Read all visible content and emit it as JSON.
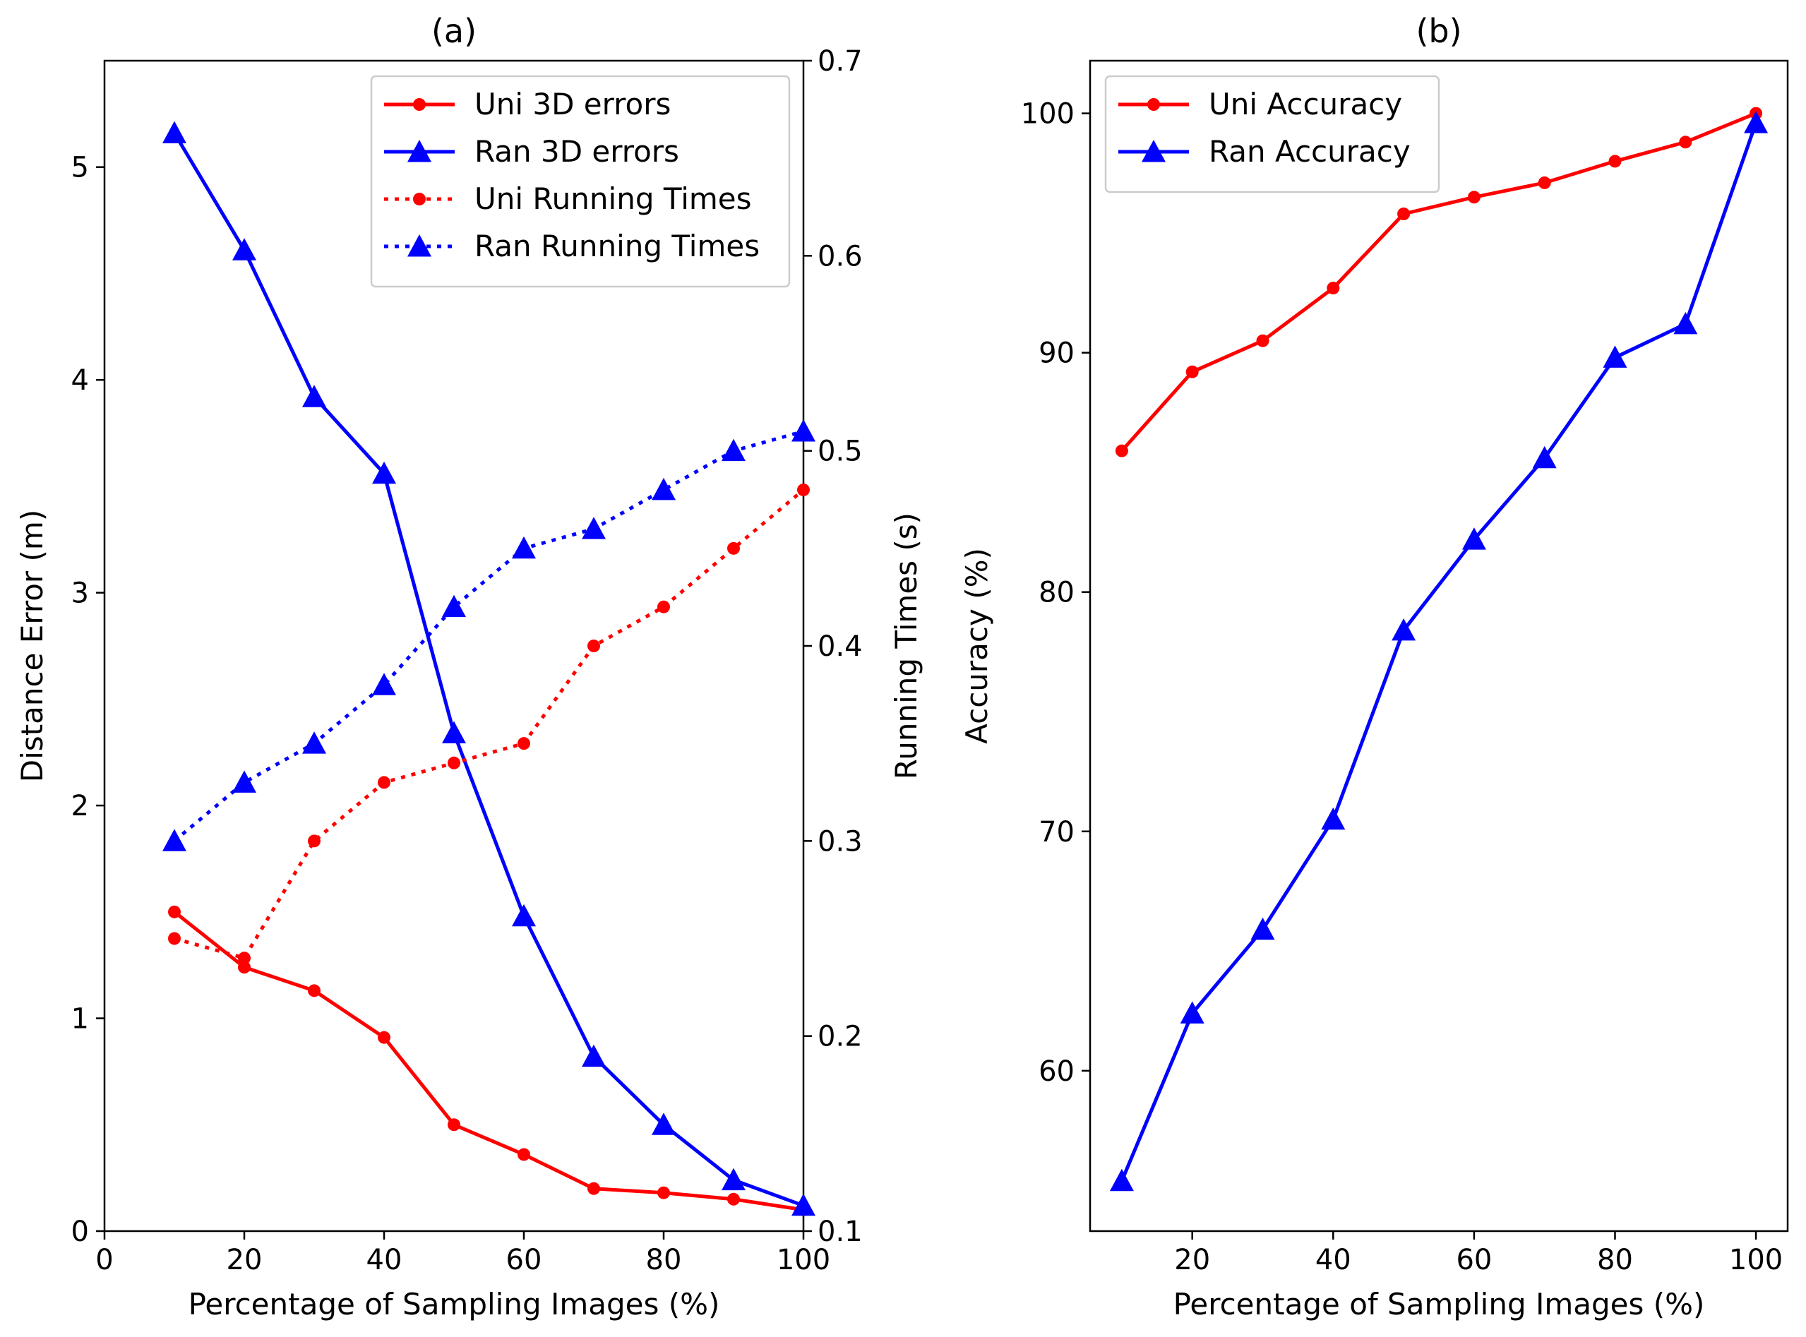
{
  "chart_data": [
    {
      "type": "line",
      "title": "(a)",
      "xlabel": "Percentage of Sampling Images (%)",
      "ylabel": "Distance Error (m)",
      "y2label": "Running Times (s)",
      "xlim": [
        0,
        100
      ],
      "ylim": [
        0,
        5.5
      ],
      "y2lim": [
        0.1,
        0.7
      ],
      "xticks": [
        0,
        20,
        40,
        60,
        80,
        100
      ],
      "yticks": [
        0,
        1,
        2,
        3,
        4,
        5
      ],
      "y2ticks": [
        0.1,
        0.2,
        0.3,
        0.4,
        0.5,
        0.6,
        0.7
      ],
      "legend_position": "top-right",
      "x": [
        10,
        20,
        30,
        40,
        50,
        60,
        70,
        80,
        90,
        100
      ],
      "series": [
        {
          "name": "Uni 3D errors",
          "axis": "left",
          "color": "#ff0000",
          "style": "solid",
          "marker": "circle",
          "values": [
            1.5,
            1.24,
            1.13,
            0.91,
            0.5,
            0.36,
            0.2,
            0.18,
            0.15,
            0.1
          ]
        },
        {
          "name": "Ran 3D errors",
          "axis": "left",
          "color": "#0000ff",
          "style": "solid",
          "marker": "triangle",
          "values": [
            5.16,
            4.61,
            3.92,
            3.56,
            2.34,
            1.48,
            0.82,
            0.5,
            0.24,
            0.12
          ]
        },
        {
          "name": "Uni Running Times",
          "axis": "right",
          "color": "#ff0000",
          "style": "dotted",
          "marker": "circle",
          "values": [
            0.25,
            0.24,
            0.3,
            0.33,
            0.34,
            0.35,
            0.4,
            0.42,
            0.45,
            0.48
          ]
        },
        {
          "name": "Ran Running Times",
          "axis": "right",
          "color": "#0000ff",
          "style": "dotted",
          "marker": "triangle",
          "values": [
            0.3,
            0.33,
            0.35,
            0.38,
            0.42,
            0.45,
            0.46,
            0.48,
            0.5,
            0.51
          ]
        }
      ]
    },
    {
      "type": "line",
      "title": "(b)",
      "xlabel": "Percentage of Sampling Images (%)",
      "ylabel": "Accuracy (%)",
      "xlim": [
        5.5,
        104.5
      ],
      "ylim": [
        53.3,
        102.2
      ],
      "xticks": [
        20,
        40,
        60,
        80,
        100
      ],
      "yticks": [
        60,
        70,
        80,
        90,
        100
      ],
      "legend_position": "top-left",
      "x": [
        10,
        20,
        30,
        40,
        50,
        60,
        70,
        80,
        90,
        100
      ],
      "series": [
        {
          "name": "Uni Accuracy",
          "axis": "left",
          "color": "#ff0000",
          "style": "solid",
          "marker": "circle",
          "values": [
            85.9,
            89.2,
            90.5,
            92.7,
            95.8,
            96.5,
            97.1,
            98.0,
            98.8,
            100.0
          ]
        },
        {
          "name": "Ran Accuracy",
          "axis": "left",
          "color": "#0000ff",
          "style": "solid",
          "marker": "triangle",
          "values": [
            55.4,
            62.4,
            65.9,
            70.5,
            78.4,
            82.2,
            85.6,
            89.8,
            91.2,
            99.6
          ]
        }
      ]
    }
  ]
}
